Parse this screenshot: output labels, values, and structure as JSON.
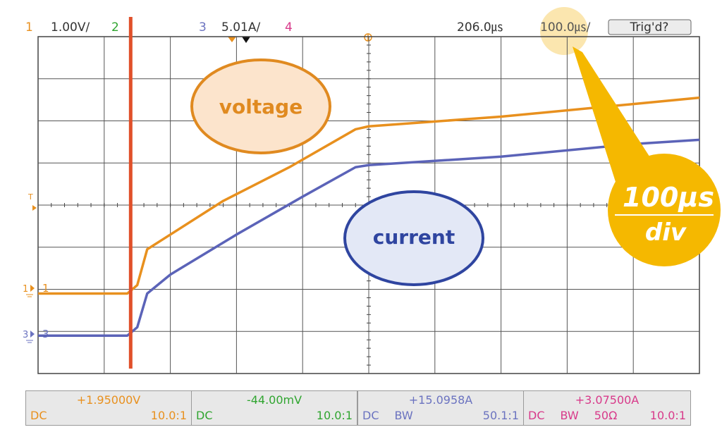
{
  "header": {
    "ch1_num": "1",
    "ch1_scale": "1.00V/",
    "ch2_num": "2",
    "ch3_num": "3",
    "ch3_scale": "5.01A/",
    "ch4_num": "4",
    "time_offset": "206.0㎲",
    "time_div": "100.0㎲/",
    "trig_button": "Trig'd?"
  },
  "markers": {
    "trig_level": "T",
    "ch1_ground": "1",
    "ch3_ground": "3"
  },
  "callouts": {
    "voltage": "voltage",
    "current": "current",
    "timebase_line1": "100µs",
    "timebase_line2": "div"
  },
  "measurements": [
    {
      "value": "+1.95000V",
      "coupling": "DC",
      "bw": "",
      "imp": "",
      "ratio": "10.0:1",
      "color": "#e8901e"
    },
    {
      "value": "-44.00mV",
      "coupling": "DC",
      "bw": "",
      "imp": "",
      "ratio": "10.0:1",
      "color": "#30a530"
    },
    {
      "value": "+15.0958A",
      "coupling": "DC",
      "bw": "BW",
      "imp": "",
      "ratio": "50.1:1",
      "color": "#6b73c0"
    },
    {
      "value": "+3.07500A",
      "coupling": "DC",
      "bw": "BW",
      "imp": "50Ω",
      "ratio": "10.0:1",
      "color": "#d83a8a"
    }
  ],
  "colors": {
    "ch1": "#e8901e",
    "ch2": "#30a530",
    "ch3": "#5b63b8",
    "ch4": "#d83a8a",
    "cursor": "#e0502a",
    "callout_yellow": "#f5b800"
  },
  "chart_data": {
    "type": "line",
    "grid": true,
    "x_divisions": 10,
    "y_divisions": 8,
    "xlabel": "",
    "ylabel": "",
    "series": [
      {
        "name": "voltage",
        "color": "#e8901e",
        "x": [
          0.0,
          1.35,
          1.5,
          1.65,
          1.9,
          2.8,
          3.8,
          4.8,
          5.0,
          7.0,
          9.0,
          10.0
        ],
        "y": [
          1.9,
          1.9,
          2.1,
          2.95,
          3.2,
          4.1,
          4.9,
          5.8,
          5.87,
          6.1,
          6.4,
          6.55
        ]
      },
      {
        "name": "current",
        "color": "#5b63b8",
        "x": [
          0.0,
          1.35,
          1.5,
          1.65,
          2.0,
          3.0,
          4.0,
          4.8,
          5.0,
          7.0,
          9.0,
          10.0
        ],
        "y": [
          0.9,
          0.9,
          1.1,
          1.9,
          2.35,
          3.3,
          4.2,
          4.9,
          4.95,
          5.15,
          5.45,
          5.55
        ]
      }
    ],
    "cursor_x": 1.4,
    "xlim": [
      0,
      10
    ],
    "ylim": [
      0,
      8
    ]
  }
}
